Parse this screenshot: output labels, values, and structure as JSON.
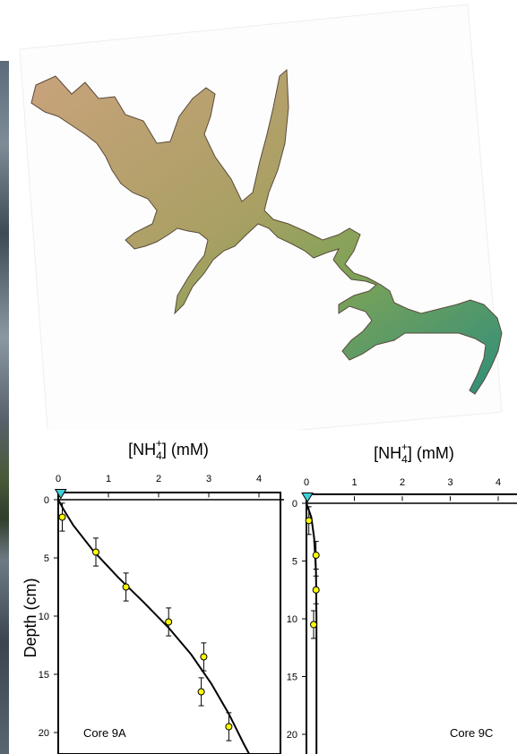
{
  "figure": {
    "colors": {
      "lake_upper": "#c9a27c",
      "lake_mid": "#9aa35b",
      "lake_lower": "#2f8f7a",
      "surface_marker": "#3fd0d8",
      "point_fill": "#ffff00"
    },
    "ylabel": "Depth (cm)"
  },
  "chart_data": [
    {
      "type": "scatter",
      "panel_label": "Core 9A",
      "title": "[NH4+] (mM)",
      "xlabel": "[NH4+] (mM)",
      "ylabel": "Depth (cm)",
      "xlim": [
        0,
        4.5
      ],
      "ylim": [
        0,
        21.5
      ],
      "x_ticks": [
        0,
        1,
        2,
        3,
        4
      ],
      "y_ticks": [
        0,
        5,
        10,
        15,
        20
      ],
      "y_inverted": true,
      "surface_marker": {
        "x": 0.05,
        "y": -0.5
      },
      "points": [
        {
          "x": 0.08,
          "y": 1.5,
          "err": 1.2
        },
        {
          "x": 0.75,
          "y": 4.5,
          "err": 1.2
        },
        {
          "x": 1.35,
          "y": 7.5,
          "err": 1.2
        },
        {
          "x": 2.2,
          "y": 10.5,
          "err": 1.2
        },
        {
          "x": 2.9,
          "y": 13.5,
          "err": 1.2
        },
        {
          "x": 2.85,
          "y": 16.5,
          "err": 1.2
        },
        {
          "x": 3.4,
          "y": 19.5,
          "err": 1.2
        }
      ],
      "fit_curve": [
        {
          "x": 0.0,
          "y": 0.0
        },
        {
          "x": 0.1,
          "y": 0.8
        },
        {
          "x": 0.3,
          "y": 2.2
        },
        {
          "x": 0.7,
          "y": 4.4
        },
        {
          "x": 1.2,
          "y": 6.7
        },
        {
          "x": 1.7,
          "y": 8.8
        },
        {
          "x": 2.2,
          "y": 11.0
        },
        {
          "x": 2.65,
          "y": 13.3
        },
        {
          "x": 3.05,
          "y": 15.8
        },
        {
          "x": 3.4,
          "y": 18.4
        },
        {
          "x": 3.7,
          "y": 21.0
        },
        {
          "x": 3.8,
          "y": 21.8
        }
      ]
    },
    {
      "type": "scatter",
      "panel_label": "Core 9C",
      "title": "[NH4+] (mM)",
      "xlabel": "[NH4+] (mM)",
      "ylabel": "",
      "xlim": [
        0,
        4.5
      ],
      "ylim": [
        0,
        21.5
      ],
      "x_ticks": [
        0,
        1,
        2,
        3,
        4
      ],
      "y_ticks": [
        0,
        5,
        10,
        15,
        20
      ],
      "y_inverted": true,
      "surface_marker": {
        "x": 0.02,
        "y": -0.5
      },
      "points": [
        {
          "x": 0.05,
          "y": 1.5,
          "err": 1.2
        },
        {
          "x": 0.2,
          "y": 4.5,
          "err": 1.2
        },
        {
          "x": 0.2,
          "y": 7.5,
          "err": 1.2
        },
        {
          "x": 0.15,
          "y": 10.5,
          "err": 1.2
        }
      ],
      "fit_curve": [
        {
          "x": 0.0,
          "y": 0.0
        },
        {
          "x": 0.1,
          "y": 1.2
        },
        {
          "x": 0.16,
          "y": 3.0
        },
        {
          "x": 0.2,
          "y": 6.0
        },
        {
          "x": 0.21,
          "y": 10.0
        },
        {
          "x": 0.21,
          "y": 21.8
        }
      ]
    }
  ]
}
